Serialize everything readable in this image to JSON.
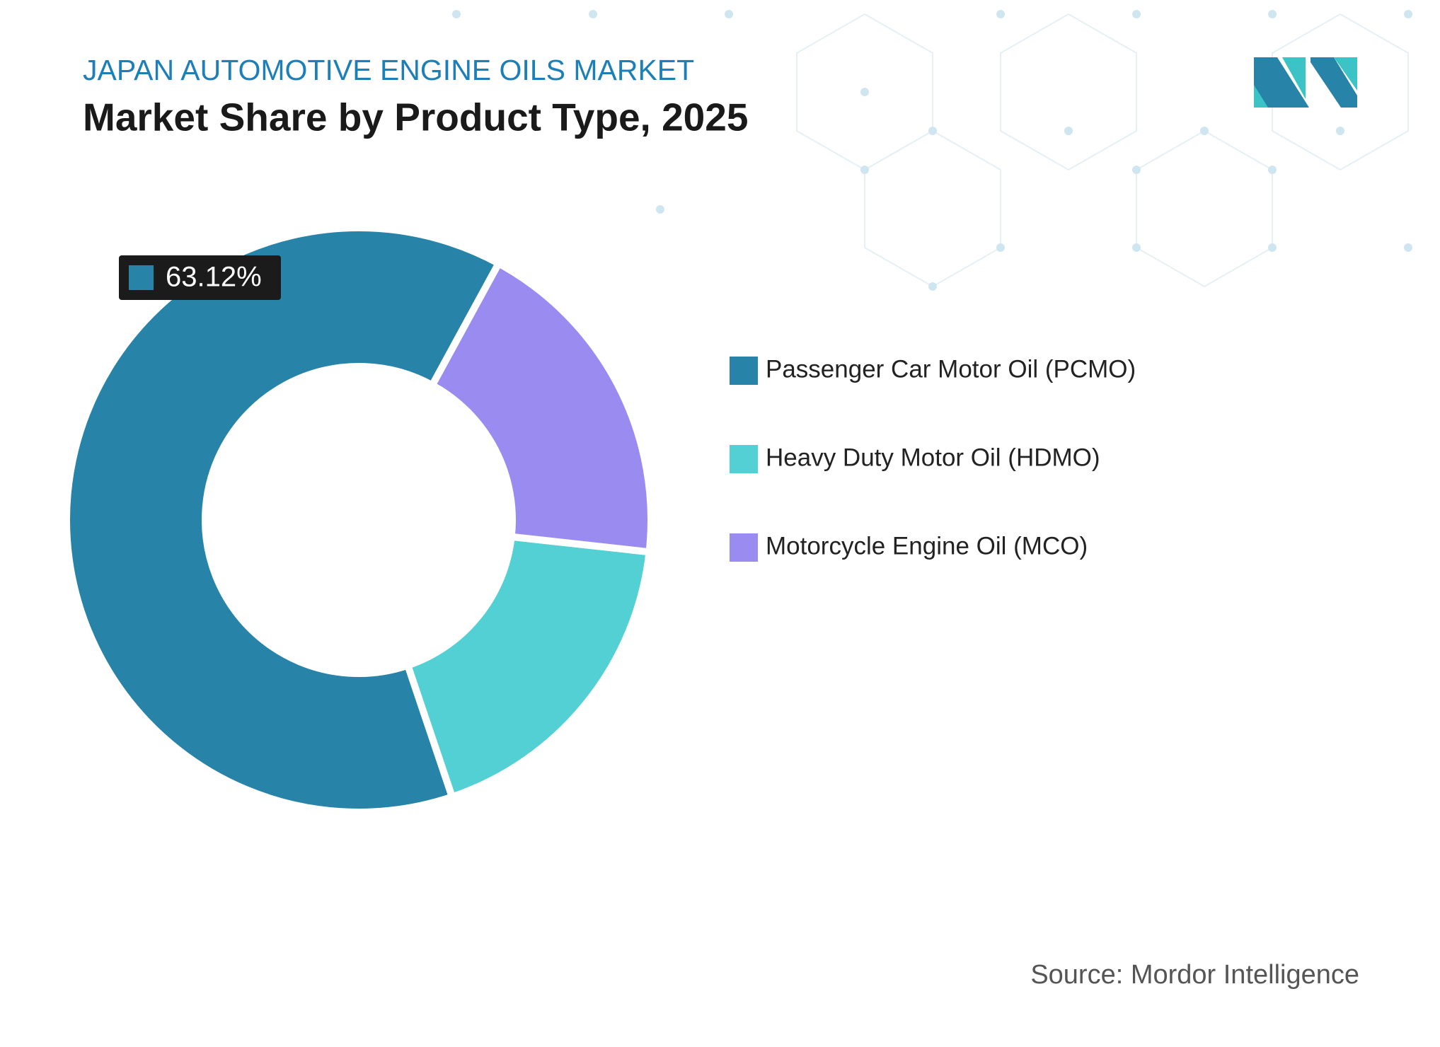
{
  "chart_data": {
    "type": "donut",
    "title": "JAPAN AUTOMOTIVE ENGINE OILS MARKET",
    "subtitle": "Market Share by Product Type, 2025",
    "categories": [
      "Passenger Car Motor Oil (PCMO)",
      "Heavy Duty Motor Oil (HDMO)",
      "Motorcycle Engine Oil (MCO)"
    ],
    "values": [
      63.12,
      18.08,
      18.8
    ],
    "value_labels": [
      "63.12%",
      null,
      null
    ],
    "colors": [
      "#2783a8",
      "#53d0d3",
      "#9a8bf0"
    ],
    "source": "Source: Mordor Intelligence"
  }
}
